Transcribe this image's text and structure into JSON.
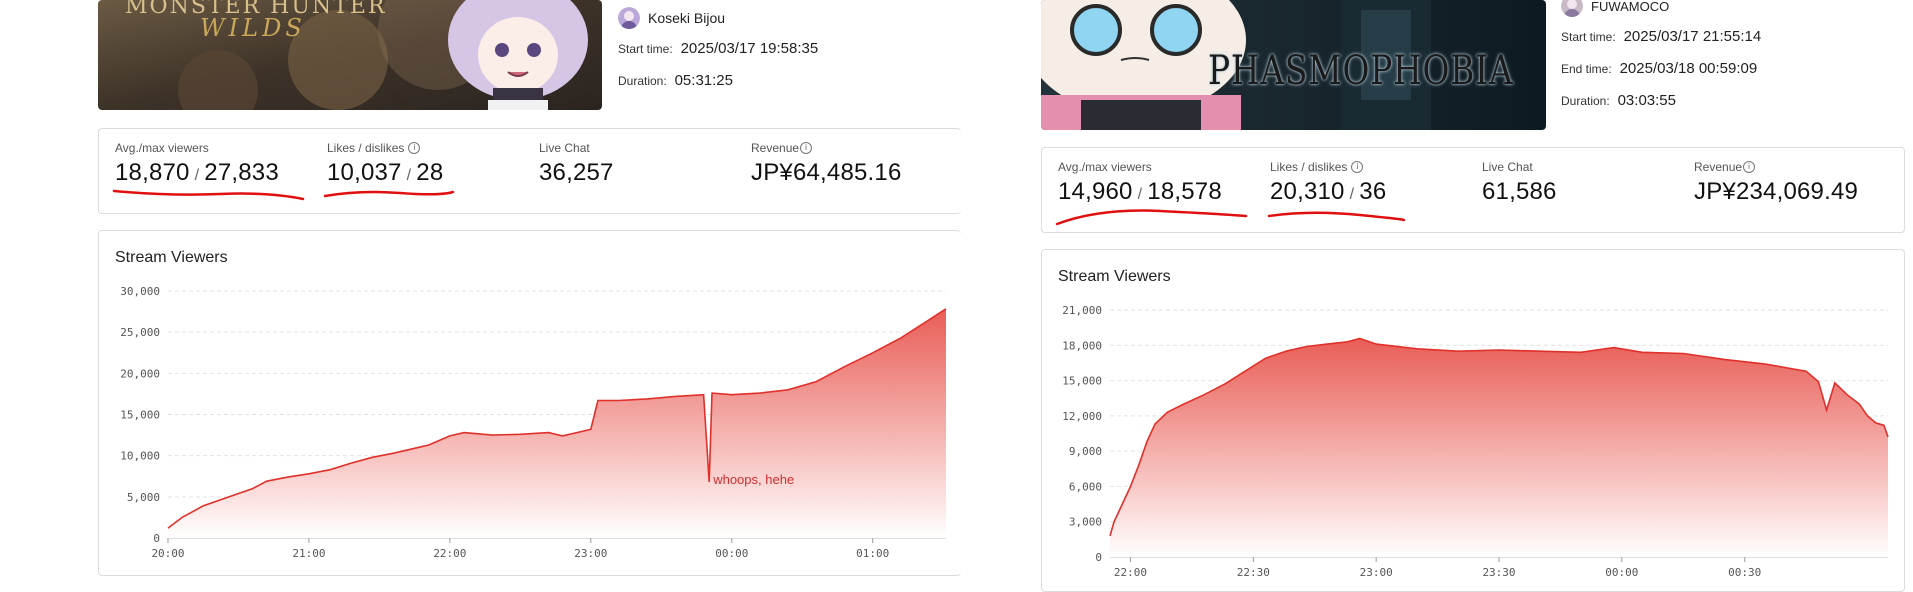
{
  "left": {
    "thumbnail": {
      "game_title": "MONSTER HUNTER",
      "game_subtitle": "WILDS"
    },
    "channel": {
      "name": "Koseki Bijou"
    },
    "start_time": {
      "label": "Start time:",
      "value": "2025/03/17 19:58:35"
    },
    "duration": {
      "label": "Duration:",
      "value": "05:31:25"
    },
    "stats": {
      "viewers_label": "Avg./max viewers",
      "viewers_avg": "18,870",
      "viewers_max": "27,833",
      "likes_label": "Likes / dislikes",
      "likes": "10,037",
      "dislikes": "28",
      "chat_label": "Live Chat",
      "chat": "36,257",
      "revenue_label": "Revenue",
      "revenue": "JP¥64,485.16",
      "separator": "/"
    },
    "chart_title": "Stream Viewers",
    "annotation": "whoops, hehe"
  },
  "right": {
    "thumbnail": {
      "game_title": "PHASMOPHOBIA"
    },
    "channel": {
      "name": "FUWAMOCO"
    },
    "start_time": {
      "label": "Start time:",
      "value": "2025/03/17 21:55:14"
    },
    "end_time": {
      "label": "End time:",
      "value": "2025/03/18 00:59:09"
    },
    "duration": {
      "label": "Duration:",
      "value": "03:03:55"
    },
    "stats": {
      "viewers_label": "Avg./max viewers",
      "viewers_avg": "14,960",
      "viewers_max": "18,578",
      "likes_label": "Likes / dislikes",
      "likes": "20,310",
      "dislikes": "36",
      "chat_label": "Live Chat",
      "chat": "61,586",
      "revenue_label": "Revenue",
      "revenue": "JP¥234,069.49",
      "separator": "/"
    },
    "chart_title": "Stream Viewers"
  },
  "colors": {
    "area_top": "#e8554e",
    "area_bottom": "#ffffff",
    "line": "#e0302a",
    "annotation": "#d32f2f",
    "underline": "#e01010"
  },
  "chart_data": [
    {
      "type": "area",
      "title": "Stream Viewers",
      "xlabel": "",
      "ylabel": "",
      "x_ticks": [
        "20:00",
        "21:00",
        "22:00",
        "23:00",
        "00:00",
        "01:00"
      ],
      "y_ticks": [
        "0",
        "5,000",
        "10,000",
        "15,000",
        "20,000",
        "25,000",
        "30,000"
      ],
      "ylim": [
        0,
        30000
      ],
      "x_unit": "hours since 20:00",
      "xlim": [
        0,
        5.52
      ],
      "grid": true,
      "series": [
        {
          "values": [
            [
              0.0,
              1200
            ],
            [
              0.1,
              2500
            ],
            [
              0.25,
              3900
            ],
            [
              0.45,
              5100
            ],
            [
              0.6,
              6000
            ],
            [
              0.7,
              6900
            ],
            [
              0.85,
              7400
            ],
            [
              1.0,
              7800
            ],
            [
              1.15,
              8300
            ],
            [
              1.3,
              9100
            ],
            [
              1.45,
              9800
            ],
            [
              1.6,
              10300
            ],
            [
              1.75,
              10900
            ],
            [
              1.85,
              11300
            ],
            [
              2.0,
              12400
            ],
            [
              2.1,
              12800
            ],
            [
              2.3,
              12500
            ],
            [
              2.5,
              12600
            ],
            [
              2.7,
              12800
            ],
            [
              2.8,
              12400
            ],
            [
              2.95,
              13000
            ],
            [
              3.0,
              13200
            ],
            [
              3.05,
              16700
            ],
            [
              3.2,
              16700
            ],
            [
              3.4,
              16900
            ],
            [
              3.6,
              17200
            ],
            [
              3.8,
              17400
            ],
            [
              3.84,
              6800
            ],
            [
              3.86,
              17600
            ],
            [
              4.0,
              17400
            ],
            [
              4.2,
              17600
            ],
            [
              4.4,
              18000
            ],
            [
              4.6,
              19000
            ],
            [
              4.8,
              20800
            ],
            [
              5.0,
              22500
            ],
            [
              5.2,
              24300
            ],
            [
              5.4,
              26500
            ],
            [
              5.52,
              27833
            ]
          ]
        }
      ],
      "annotations": [
        {
          "text": "whoops, hehe",
          "x": 3.84,
          "y": 6800
        }
      ]
    },
    {
      "type": "area",
      "title": "Stream Viewers",
      "xlabel": "",
      "ylabel": "",
      "x_ticks": [
        "22:00",
        "22:30",
        "23:00",
        "23:30",
        "00:00",
        "00:30"
      ],
      "y_ticks": [
        "0",
        "3,000",
        "6,000",
        "9,000",
        "12,000",
        "15,000",
        "18,000",
        "21,000"
      ],
      "ylim": [
        0,
        21000
      ],
      "x_unit": "minutes since 22:00",
      "xlim": [
        -5,
        185
      ],
      "grid": true,
      "series": [
        {
          "values": [
            [
              -5,
              1800
            ],
            [
              -4,
              3000
            ],
            [
              -2,
              4500
            ],
            [
              0,
              6000
            ],
            [
              2,
              7800
            ],
            [
              4,
              9800
            ],
            [
              6,
              11300
            ],
            [
              9,
              12300
            ],
            [
              13,
              13000
            ],
            [
              18,
              13800
            ],
            [
              23,
              14700
            ],
            [
              28,
              15800
            ],
            [
              33,
              16900
            ],
            [
              38,
              17500
            ],
            [
              43,
              17900
            ],
            [
              48,
              18100
            ],
            [
              53,
              18300
            ],
            [
              56,
              18578
            ],
            [
              60,
              18100
            ],
            [
              70,
              17700
            ],
            [
              80,
              17500
            ],
            [
              90,
              17600
            ],
            [
              100,
              17500
            ],
            [
              110,
              17400
            ],
            [
              118,
              17800
            ],
            [
              125,
              17400
            ],
            [
              135,
              17300
            ],
            [
              145,
              16800
            ],
            [
              155,
              16400
            ],
            [
              165,
              15800
            ],
            [
              168,
              14900
            ],
            [
              170,
              12500
            ],
            [
              172,
              14800
            ],
            [
              175,
              13800
            ],
            [
              178,
              13000
            ],
            [
              180,
              12000
            ],
            [
              182,
              11400
            ],
            [
              184,
              11200
            ],
            [
              185,
              10200
            ]
          ]
        }
      ]
    }
  ]
}
